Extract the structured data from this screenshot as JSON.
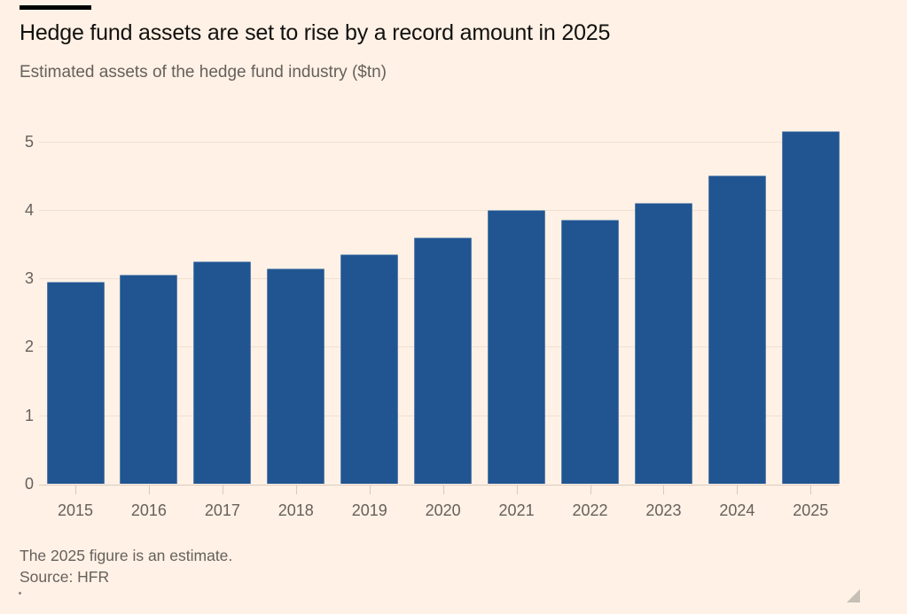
{
  "chart_data": {
    "type": "bar",
    "title": "Hedge fund assets are set to rise by a record amount in 2025",
    "subtitle": "Estimated assets of the hedge fund industry ($tn)",
    "categories": [
      "2015",
      "2016",
      "2017",
      "2018",
      "2019",
      "2020",
      "2021",
      "2022",
      "2023",
      "2024",
      "2025"
    ],
    "values": [
      2.95,
      3.05,
      3.25,
      3.15,
      3.35,
      3.6,
      4.0,
      3.85,
      4.1,
      4.5,
      5.15
    ],
    "xlabel": "",
    "ylabel": "",
    "yticks": [
      0,
      1,
      2,
      3,
      4,
      5
    ],
    "ytick_labels": [
      "0",
      "1",
      "2",
      "3",
      "4",
      "5"
    ],
    "ylim": [
      0,
      5.3
    ],
    "grid": true,
    "legend": false,
    "note": "The 2025 figure is an estimate.",
    "source": "Source: HFR",
    "bar_color": "#215592",
    "background_color": "#fff1e5",
    "text_color": "#66605c",
    "title_color": "#121110"
  }
}
